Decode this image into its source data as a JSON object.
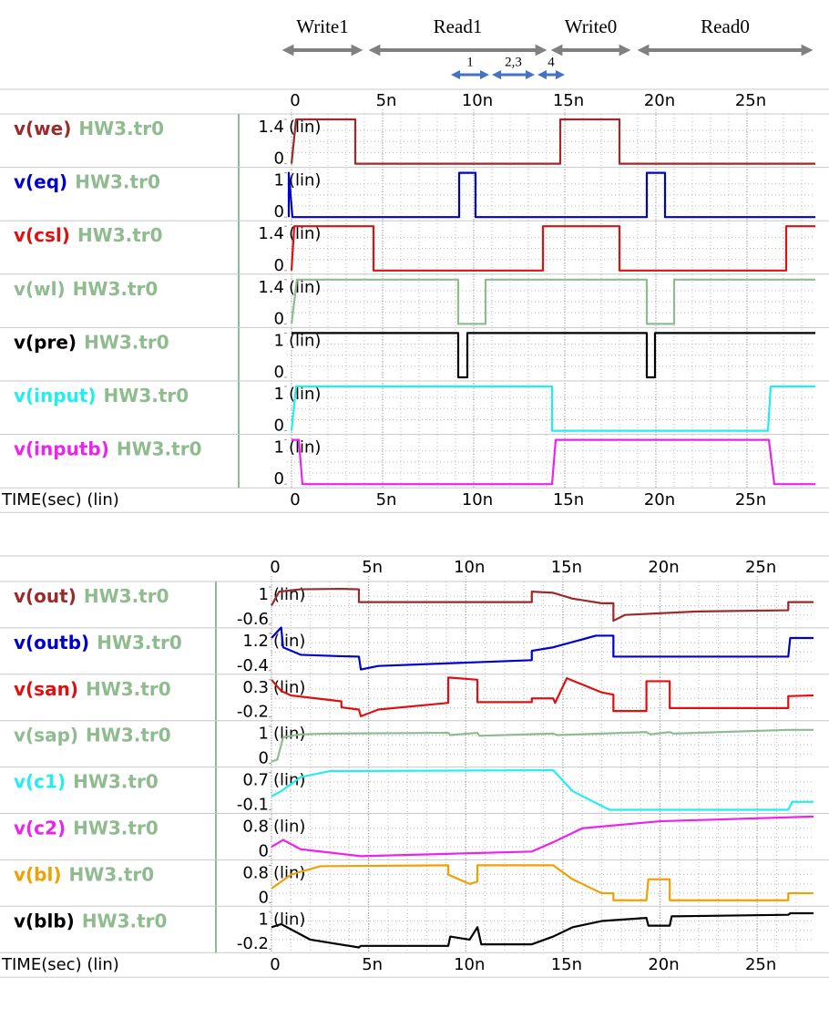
{
  "chart_data": [
    {
      "type": "line",
      "xlabel": "TIME(sec) (lin)",
      "xlim": [
        -2.5e-10,
        2.875e-08
      ],
      "xticks": [
        0,
        {
          "value": 5e-09,
          "label": "5n"
        },
        {
          "value": 1e-08,
          "label": "10n"
        },
        {
          "value": 1.5e-08,
          "label": "15n"
        },
        {
          "value": 2e-08,
          "label": "20n"
        },
        {
          "value": 2.5e-08,
          "label": "25n"
        }
      ],
      "phases": [
        {
          "text": "Write1",
          "x": [
            -5e-10,
            3.9e-09
          ]
        },
        {
          "text": "Read1",
          "x": [
            4.25e-09,
            1.4e-08
          ]
        },
        {
          "text": "Write0",
          "x": [
            1.425e-08,
            1.86e-08
          ]
        },
        {
          "text": "Read0",
          "x": [
            1.9e-08,
            2.86e-08
          ]
        }
      ],
      "steps": [
        {
          "text": "1",
          "x": [
            8.75e-09,
            1.085e-08
          ]
        },
        {
          "text": "2,3",
          "x": [
            1.1e-08,
            1.335e-08
          ]
        },
        {
          "text": "4",
          "x": [
            1.35e-08,
            1.5e-08
          ]
        }
      ],
      "series": [
        {
          "name": "v(we)",
          "source": "HW3.tr0",
          "scale": "(lin)",
          "color": "#9b2a2a",
          "ylim": [
            0,
            1.4
          ],
          "yticks": [
            1.4,
            0
          ],
          "x": [
            0,
            2.5e-10,
            3.5e-09,
            3.5e-09,
            1.475e-08,
            1.475e-08,
            1.8e-08,
            1.8e-08,
            2.875e-08
          ],
          "values": [
            0,
            1.4,
            1.4,
            0,
            0,
            1.4,
            1.4,
            0,
            0
          ]
        },
        {
          "name": "v(eq)",
          "source": "HW3.tr0",
          "scale": "(lin)",
          "color": "#0000cc",
          "ylim": [
            0,
            1
          ],
          "yticks": [
            1,
            0
          ],
          "x": [
            -1.5e-10,
            -1.5e-10,
            5e-11,
            9.2e-09,
            9.2e-09,
            1.01e-08,
            1.01e-08,
            1.95e-08,
            1.95e-08,
            2.05e-08,
            2.05e-08,
            2.875e-08
          ],
          "values": [
            0,
            1,
            0,
            0,
            1,
            1,
            0,
            0,
            1,
            1,
            0,
            0
          ]
        },
        {
          "name": "v(csl)",
          "source": "HW3.tr0",
          "scale": "(lin)",
          "color": "#dd1111",
          "ylim": [
            0,
            1.4
          ],
          "yticks": [
            1.4,
            0
          ],
          "x": [
            0,
            1.5e-10,
            4.5e-09,
            4.5e-09,
            1.38e-08,
            1.38e-08,
            1.8e-08,
            1.8e-08,
            2.715e-08,
            2.715e-08,
            2.875e-08
          ],
          "values": [
            0,
            1.4,
            1.4,
            0,
            0,
            1.4,
            1.4,
            0,
            0,
            1.4,
            1.4
          ]
        },
        {
          "name": "v(wl)",
          "source": "HW3.tr0",
          "scale": "(lin)",
          "color": "#8fbc8f",
          "ylim": [
            0,
            1.4
          ],
          "yticks": [
            1.4,
            0
          ],
          "x": [
            0,
            3e-10,
            9.15e-09,
            9.15e-09,
            1.065e-08,
            1.065e-08,
            1.95e-08,
            1.95e-08,
            2.1e-08,
            2.1e-08,
            2.875e-08
          ],
          "values": [
            0,
            1.4,
            1.4,
            0,
            0,
            1.4,
            1.4,
            0,
            0,
            1.4,
            1.4
          ]
        },
        {
          "name": "v(pre)",
          "source": "HW3.tr0",
          "scale": "(lin)",
          "color": "#000000",
          "ylim": [
            0,
            1
          ],
          "yticks": [
            1,
            0
          ],
          "x": [
            0,
            9.15e-09,
            9.15e-09,
            9.65e-09,
            9.65e-09,
            1.95e-08,
            1.95e-08,
            1.995e-08,
            1.995e-08,
            2.875e-08
          ],
          "values": [
            1,
            1,
            0,
            0,
            1,
            1,
            0,
            0,
            1,
            1
          ]
        },
        {
          "name": "v(input)",
          "source": "HW3.tr0",
          "scale": "(lin)",
          "color": "#22eeee",
          "ylim": [
            0,
            1
          ],
          "yticks": [
            1,
            0
          ],
          "x": [
            0,
            2.5e-10,
            1.43e-08,
            1.43e-08,
            2.615e-08,
            2.63e-08,
            2.875e-08
          ],
          "values": [
            0,
            1,
            1,
            0,
            0,
            1,
            1
          ]
        },
        {
          "name": "v(inputb)",
          "source": "HW3.tr0",
          "scale": "(lin)",
          "color": "#ee22ee",
          "ylim": [
            0,
            1
          ],
          "yticks": [
            1,
            0
          ],
          "x": [
            0,
            4e-10,
            6e-10,
            1.43e-08,
            1.45e-08,
            2.62e-08,
            2.65e-08,
            2.875e-08
          ],
          "values": [
            1,
            1,
            0,
            0,
            1,
            1,
            0,
            0
          ]
        }
      ]
    },
    {
      "type": "line",
      "xlabel": "TIME(sec) (lin)",
      "xlim": [
        0,
        2.79e-08
      ],
      "xticks": [
        0,
        {
          "value": 5e-09,
          "label": "5n"
        },
        {
          "value": 1e-08,
          "label": "10n"
        },
        {
          "value": 1.5e-08,
          "label": "15n"
        },
        {
          "value": 2e-08,
          "label": "20n"
        },
        {
          "value": 2.5e-08,
          "label": "25n"
        }
      ],
      "series": [
        {
          "name": "v(out)",
          "source": "HW3.tr0",
          "scale": "(lin)",
          "color": "#9b2a2a",
          "ylim": [
            -0.6,
            1
          ],
          "yticks": [
            1,
            -0.6
          ],
          "x": [
            0,
            4e-10,
            1.5e-09,
            3.5e-09,
            4.5e-09,
            4.5e-09,
            1.34e-08,
            1.34e-08,
            1.45e-08,
            1.55e-08,
            1.7e-08,
            1.76e-08,
            1.76e-08,
            1.82e-08,
            2.2e-08,
            2.66e-08,
            2.66e-08,
            2.79e-08
          ],
          "values": [
            0.2,
            0.8,
            0.9,
            0.92,
            0.9,
            0.35,
            0.35,
            0.8,
            0.75,
            0.5,
            0.3,
            0.3,
            -0.45,
            -0.2,
            -0.05,
            0,
            0.35,
            0.35
          ]
        },
        {
          "name": "v(outb)",
          "source": "HW3.tr0",
          "scale": "(lin)",
          "color": "#0000cc",
          "ylim": [
            -0.4,
            1.2
          ],
          "yticks": [
            1.2,
            -0.4
          ],
          "x": [
            0,
            5e-10,
            6e-10,
            1.5e-09,
            3.5e-09,
            4.5e-09,
            4.6e-09,
            5.5e-09,
            1.34e-08,
            1.34e-08,
            1.45e-08,
            1.67e-08,
            1.76e-08,
            1.76e-08,
            2.66e-08,
            2.67e-08,
            2.79e-08
          ],
          "values": [
            1.0,
            1.45,
            0.6,
            0.28,
            0.22,
            0.2,
            -0.35,
            -0.2,
            0.05,
            0.45,
            0.6,
            1.1,
            1.1,
            0.2,
            0.2,
            1.0,
            1.0
          ]
        },
        {
          "name": "v(san)",
          "source": "HW3.tr0",
          "scale": "(lin)",
          "color": "#dd1111",
          "ylim": [
            -0.2,
            0.3
          ],
          "yticks": [
            0.3,
            -0.2
          ],
          "x": [
            0,
            5e-10,
            1e-09,
            3.6e-09,
            3.6e-09,
            4.5e-09,
            4.6e-09,
            5.5e-09,
            9.1e-09,
            9.1e-09,
            1.06e-08,
            1.06e-08,
            1.34e-08,
            1.34e-08,
            1.45e-08,
            1.46e-08,
            1.52e-08,
            1.7e-08,
            1.76e-08,
            1.76e-08,
            1.93e-08,
            1.93e-08,
            2.05e-08,
            2.05e-08,
            2.66e-08,
            2.66e-08,
            2.79e-08
          ],
          "values": [
            0.3,
            0.15,
            0.09,
            0.01,
            -0.07,
            -0.1,
            -0.19,
            -0.1,
            -0.01,
            0.33,
            0.3,
            0,
            0,
            0.05,
            0.05,
            -0.01,
            0.32,
            0.13,
            0.1,
            -0.12,
            -0.12,
            0.28,
            0.28,
            -0.08,
            -0.08,
            0.08,
            0.09
          ]
        },
        {
          "name": "v(sap)",
          "source": "HW3.tr0",
          "scale": "(lin)",
          "color": "#8fbc8f",
          "ylim": [
            0,
            1
          ],
          "yticks": [
            1,
            0
          ],
          "x": [
            0,
            3e-10,
            6e-10,
            1.5e-09,
            3e-09,
            9.1e-09,
            9.2e-09,
            1.06e-08,
            1.07e-08,
            1.45e-08,
            1.47e-08,
            1.93e-08,
            1.95e-08,
            2.05e-08,
            2.07e-08,
            2.66e-08,
            2.79e-08
          ],
          "values": [
            0.05,
            0.1,
            0.7,
            0.78,
            0.8,
            0.82,
            0.76,
            0.82,
            0.74,
            0.8,
            0.76,
            0.84,
            0.78,
            0.84,
            0.8,
            0.9,
            0.9
          ]
        },
        {
          "name": "v(c1)",
          "source": "HW3.tr0",
          "scale": "(lin)",
          "color": "#22eeee",
          "ylim": [
            -0.1,
            0.7
          ],
          "yticks": [
            0.7,
            -0.1
          ],
          "x": [
            0,
            5e-10,
            1.5e-09,
            3e-09,
            1.45e-08,
            1.55e-08,
            1.74e-08,
            2.66e-08,
            2.68e-08,
            2.79e-08
          ],
          "values": [
            0.19,
            0.3,
            0.6,
            0.73,
            0.75,
            0.3,
            -0.1,
            -0.1,
            0.07,
            0.07
          ]
        },
        {
          "name": "v(c2)",
          "source": "HW3.tr0",
          "scale": "(lin)",
          "color": "#ee22ee",
          "ylim": [
            0,
            0.8
          ],
          "yticks": [
            0.8,
            0
          ],
          "x": [
            0,
            6e-10,
            1.5e-09,
            4.6e-09,
            9e-09,
            1.34e-08,
            1.45e-08,
            1.6e-08,
            2e-08,
            2.79e-08
          ],
          "values": [
            0.2,
            0.35,
            0.15,
            0,
            0.05,
            0.1,
            0.3,
            0.6,
            0.75,
            0.85
          ]
        },
        {
          "name": "v(bl)",
          "source": "HW3.tr0",
          "scale": "(lin)",
          "color": "#f0a000",
          "ylim": [
            0,
            0.8
          ],
          "yticks": [
            0.8,
            0
          ],
          "x": [
            0,
            1e-09,
            2.5e-09,
            9.1e-09,
            9.1e-09,
            1.02e-08,
            1.06e-08,
            1.06e-08,
            1.45e-08,
            1.55e-08,
            1.7e-08,
            1.76e-08,
            1.76e-08,
            1.93e-08,
            1.94e-08,
            2.05e-08,
            2.05e-08,
            2.66e-08,
            2.66e-08,
            2.79e-08
          ],
          "values": [
            0.3,
            0.6,
            0.78,
            0.8,
            0.6,
            0.4,
            0.45,
            0.8,
            0.8,
            0.5,
            0.2,
            0.2,
            0.05,
            0.05,
            0.5,
            0.5,
            0.05,
            0.05,
            0.2,
            0.2
          ]
        },
        {
          "name": "v(blb)",
          "source": "HW3.tr0",
          "scale": "(lin)",
          "color": "#000000",
          "ylim": [
            -0.2,
            1
          ],
          "yticks": [
            1,
            -0.2
          ],
          "x": [
            0,
            5e-10,
            2e-09,
            4.5e-09,
            4.6e-09,
            9.1e-09,
            9.2e-09,
            1.02e-08,
            1.06e-08,
            1.08e-08,
            1.34e-08,
            1.45e-08,
            1.55e-08,
            1.7e-08,
            1.93e-08,
            1.94e-08,
            2.05e-08,
            2.06e-08,
            2.66e-08,
            2.67e-08,
            2.79e-08
          ],
          "values": [
            0.5,
            0.6,
            0.1,
            -0.15,
            -0.1,
            -0.1,
            0.2,
            0.1,
            0.5,
            -0.05,
            -0.05,
            0.2,
            0.5,
            0.7,
            0.8,
            0.55,
            0.55,
            0.85,
            0.9,
            0.95,
            0.95
          ]
        }
      ]
    }
  ]
}
